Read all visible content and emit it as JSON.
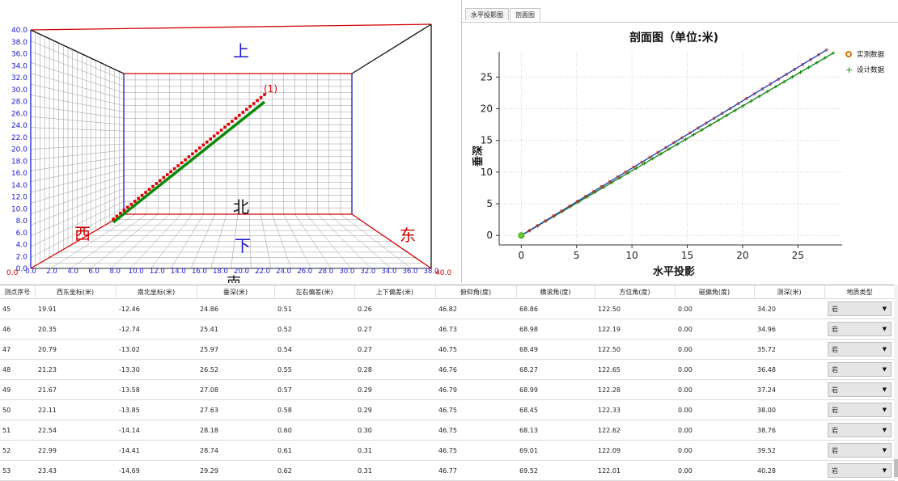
{
  "view3d": {
    "labels": {
      "up": "上",
      "north": "北",
      "west": "西",
      "east": "东",
      "down": "下",
      "south": "南"
    },
    "series_label": "(1)",
    "colors": {
      "measured": "#e00000",
      "design": "#0a8a0a",
      "box_edge": "#d00000",
      "box_edge_left": "#1a1acc"
    }
  },
  "tabs": [
    {
      "label": "水平投影图",
      "active": false
    },
    {
      "label": "剖面图",
      "active": true
    }
  ],
  "chart_data": {
    "type": "line",
    "title": "剖面图（单位:米)",
    "xlabel": "水平投影",
    "ylabel": "垂深",
    "xlim": [
      -2,
      29
    ],
    "ylim": [
      -1.5,
      29
    ],
    "xticks": [
      0,
      5,
      10,
      15,
      20,
      25
    ],
    "yticks": [
      0,
      5,
      10,
      15,
      20,
      25
    ],
    "grid": true,
    "legend": "top-right",
    "series": [
      {
        "name": "实测数据",
        "color": "#d04020",
        "marker": "circle",
        "x": [
          0,
          27.6
        ],
        "y": [
          0,
          29.3
        ]
      },
      {
        "name": "设计数据",
        "color": "#0a8a0a",
        "marker": "plus",
        "x": [
          0,
          28.2
        ],
        "y": [
          0,
          28.8
        ]
      }
    ],
    "origin_marker": {
      "x": 0,
      "y": 0,
      "color": "#66cc33"
    }
  },
  "table": {
    "headers": [
      "测点序号",
      "西东坐标(米)",
      "南北坐标(米)",
      "垂深(米)",
      "左右偏差(米)",
      "上下偏差(米)",
      "俯仰角(度)",
      "横滚角(度)",
      "方位角(度)",
      "磁偏角(度)",
      "测深(米)",
      "地质类型"
    ],
    "rows": [
      [
        "45",
        "19.91",
        "-12.46",
        "24.86",
        "0.51",
        "0.26",
        "46.82",
        "68.86",
        "122.50",
        "0.00",
        "34.20",
        "岩"
      ],
      [
        "46",
        "20.35",
        "-12.74",
        "25.41",
        "0.52",
        "0.27",
        "46.73",
        "68.98",
        "122.19",
        "0.00",
        "34.96",
        "岩"
      ],
      [
        "47",
        "20.79",
        "-13.02",
        "25.97",
        "0.54",
        "0.27",
        "46.75",
        "68.49",
        "122.50",
        "0.00",
        "35.72",
        "岩"
      ],
      [
        "48",
        "21.23",
        "-13.30",
        "26.52",
        "0.55",
        "0.28",
        "46.76",
        "68.27",
        "122.65",
        "0.00",
        "36.48",
        "岩"
      ],
      [
        "49",
        "21.67",
        "-13.58",
        "27.08",
        "0.57",
        "0.29",
        "46.79",
        "68.99",
        "122.28",
        "0.00",
        "37.24",
        "岩"
      ],
      [
        "50",
        "22.11",
        "-13.85",
        "27.63",
        "0.58",
        "0.29",
        "46.75",
        "68.45",
        "122.33",
        "0.00",
        "38.00",
        "岩"
      ],
      [
        "51",
        "22.54",
        "-14.14",
        "28.18",
        "0.60",
        "0.30",
        "46.75",
        "68.13",
        "122.62",
        "0.00",
        "38.76",
        "岩"
      ],
      [
        "52",
        "22.99",
        "-14.41",
        "28.74",
        "0.61",
        "0.31",
        "46.75",
        "69.01",
        "122.09",
        "0.00",
        "39.52",
        "岩"
      ],
      [
        "53",
        "23.43",
        "-14.69",
        "29.29",
        "0.62",
        "0.31",
        "46.77",
        "69.52",
        "122.01",
        "0.00",
        "40.28",
        "岩"
      ]
    ]
  }
}
